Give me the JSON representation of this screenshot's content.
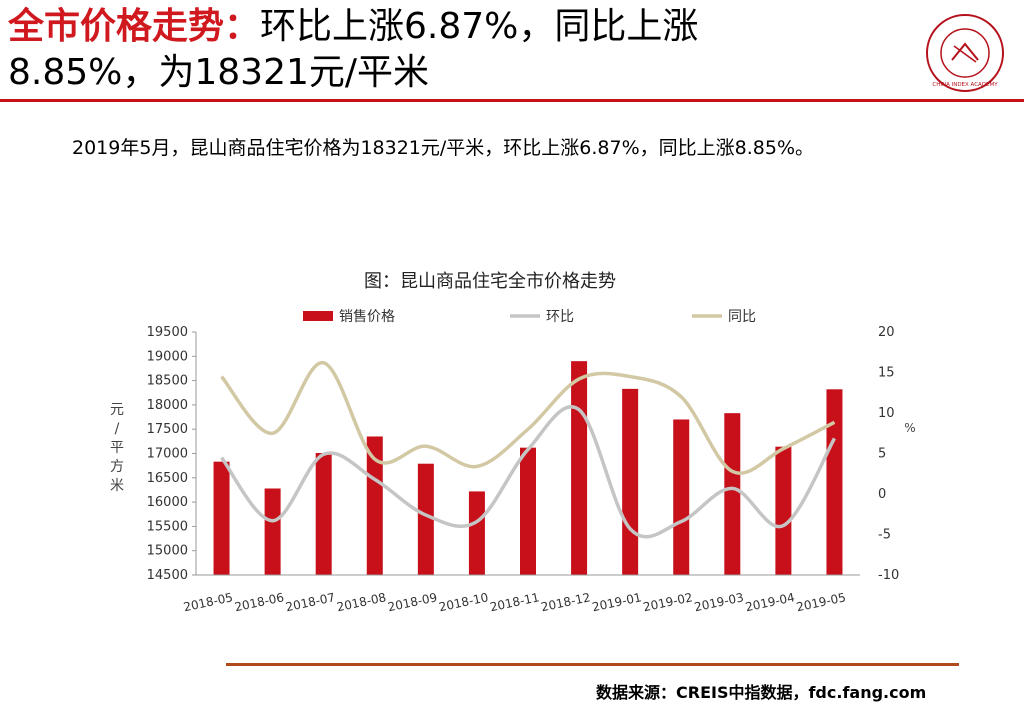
{
  "header": {
    "title_highlight": "全市价格走势：",
    "title_rest_line1": "环比上涨6.87%，同比上涨",
    "title_line2": "8.85%，为18321元/平米"
  },
  "logo": {
    "icon": "china-index-academy-seal-icon",
    "text": "CHINA INDEX ACADEMY"
  },
  "summary": "2019年5月，昆山商品住宅价格为18321元/平米，环比上涨6.87%，同比上涨8.85%。",
  "source": "数据来源：CREIS中指数据，fdc.fang.com",
  "chart_data": {
    "type": "bar",
    "title": "图：昆山商品住宅全市价格走势",
    "categories": [
      "2018-05",
      "2018-06",
      "2018-07",
      "2018-08",
      "2018-09",
      "2018-10",
      "2018-11",
      "2018-12",
      "2019-01",
      "2019-02",
      "2019-03",
      "2019-04",
      "2019-05"
    ],
    "ylabel": "元/平方米",
    "y2label": "%",
    "ylim": [
      14500,
      19500
    ],
    "yticks": [
      14500,
      15000,
      15500,
      16000,
      16500,
      17000,
      17500,
      18000,
      18500,
      19000,
      19500
    ],
    "y2lim": [
      -10,
      20
    ],
    "y2ticks": [
      -10,
      -5,
      0,
      5,
      10,
      15,
      20
    ],
    "legend_position": "top",
    "series": [
      {
        "name": "销售价格",
        "type": "bar",
        "axis": "left",
        "color": "#c8101a",
        "values": [
          16832,
          16280,
          17010,
          17350,
          16790,
          16220,
          17120,
          18900,
          18330,
          17700,
          17830,
          17140,
          18321
        ]
      },
      {
        "name": "环比",
        "type": "line",
        "axis": "right",
        "color": "#c5c5c5",
        "values": [
          4.5,
          -3.3,
          4.9,
          1.8,
          -2.6,
          -3.4,
          5.5,
          10.4,
          -4.3,
          -3.4,
          0.7,
          -3.9,
          6.87
        ]
      },
      {
        "name": "同比",
        "type": "line",
        "axis": "right",
        "color": "#d2c8a4",
        "values": [
          14.5,
          7.5,
          16.2,
          4.3,
          5.9,
          3.4,
          8.0,
          14.2,
          14.5,
          12.0,
          2.8,
          5.6,
          8.85
        ]
      }
    ]
  }
}
